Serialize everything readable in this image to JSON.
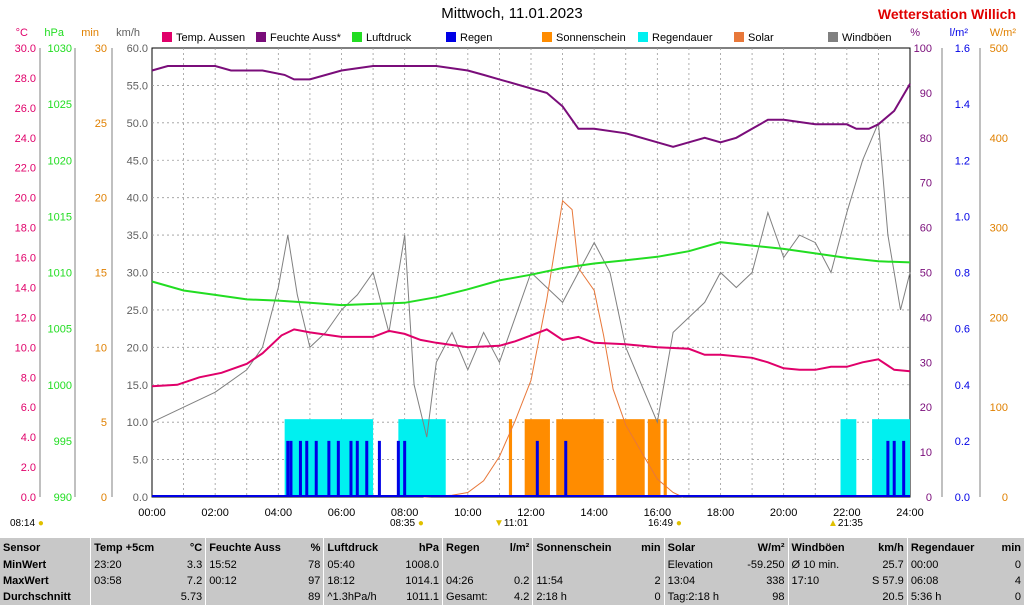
{
  "title": "Mittwoch, 11.01.2023",
  "brand": "Wetterstation Willich",
  "legend": [
    {
      "label": "Temp. Aussen",
      "color": "#e0006a"
    },
    {
      "label": "Feuchte Auss*",
      "color": "#7a0d7a"
    },
    {
      "label": "Luftdruck",
      "color": "#22dd22"
    },
    {
      "label": "Regen",
      "color": "#0000e6"
    },
    {
      "label": "Sonnenschein",
      "color": "#ff8c00"
    },
    {
      "label": "Regendauer",
      "color": "#00f0f0"
    },
    {
      "label": "Solar",
      "color": "#e8783a"
    },
    {
      "label": "Windböen",
      "color": "#808080"
    }
  ],
  "axes": {
    "temp": {
      "unit": "°C",
      "color": "#e0006a",
      "ticks": [
        "0.0",
        "2.0",
        "4.0",
        "6.0",
        "8.0",
        "10.0",
        "12.0",
        "14.0",
        "16.0",
        "18.0",
        "20.0",
        "22.0",
        "24.0",
        "26.0",
        "28.0",
        "30.0"
      ]
    },
    "press": {
      "unit": "hPa",
      "color": "#22dd22",
      "ticks": [
        "990",
        "995",
        "1000",
        "1005",
        "1010",
        "1015",
        "1020",
        "1025",
        "1030"
      ]
    },
    "min": {
      "unit": "min",
      "color": "#e08000",
      "ticks": [
        "0",
        "5",
        "10",
        "15",
        "20",
        "25",
        "30"
      ]
    },
    "wind": {
      "unit": "km/h",
      "color": "#606060",
      "ticks": [
        "0.0",
        "5.0",
        "10.0",
        "15.0",
        "20.0",
        "25.0",
        "30.0",
        "35.0",
        "40.0",
        "45.0",
        "50.0",
        "55.0",
        "60.0"
      ]
    },
    "hum": {
      "unit": "%",
      "color": "#7a0d7a",
      "ticks": [
        "0",
        "10",
        "20",
        "30",
        "40",
        "50",
        "60",
        "70",
        "80",
        "90",
        "100"
      ]
    },
    "rain": {
      "unit": "l/m²",
      "color": "#0000e6",
      "ticks": [
        "0.0",
        "0.2",
        "0.4",
        "0.6",
        "0.8",
        "1.0",
        "1.2",
        "1.4",
        "1.6"
      ]
    },
    "solar": {
      "unit": "W/m²",
      "color": "#e08000",
      "ticks": [
        "0",
        "100",
        "200",
        "300",
        "400",
        "500"
      ]
    },
    "time": {
      "ticks": [
        "00:00",
        "02:00",
        "04:00",
        "06:00",
        "08:00",
        "10:00",
        "12:00",
        "14:00",
        "16:00",
        "18:00",
        "20:00",
        "22:00",
        "24:00"
      ]
    }
  },
  "markers": {
    "left": "08:14",
    "sunrise": "08:35",
    "noon": "11:01",
    "sunset": "16:49",
    "right": "21:35"
  },
  "chart_data": {
    "type": "line",
    "x_unit": "hours",
    "temperature": [
      [
        0,
        7.4
      ],
      [
        0.8,
        7.5
      ],
      [
        1.5,
        8.0
      ],
      [
        2.2,
        8.3
      ],
      [
        3,
        8.9
      ],
      [
        3.5,
        9.6
      ],
      [
        4.1,
        10.8
      ],
      [
        4.5,
        11.2
      ],
      [
        5,
        11.0
      ],
      [
        6,
        10.7
      ],
      [
        7,
        10.7
      ],
      [
        7.5,
        11.1
      ],
      [
        8,
        10.9
      ],
      [
        8.5,
        10.5
      ],
      [
        9,
        10.3
      ],
      [
        10,
        10.0
      ],
      [
        11,
        10.1
      ],
      [
        11.5,
        10.4
      ],
      [
        12,
        10.8
      ],
      [
        12.5,
        11.2
      ],
      [
        13,
        10.5
      ],
      [
        13.5,
        10.7
      ],
      [
        14,
        10.3
      ],
      [
        15,
        10.2
      ],
      [
        16,
        10.0
      ],
      [
        17,
        9.9
      ],
      [
        17.5,
        9.5
      ],
      [
        18,
        9.5
      ],
      [
        19,
        9.3
      ],
      [
        19.5,
        9.0
      ],
      [
        20,
        8.6
      ],
      [
        20.5,
        8.5
      ],
      [
        21,
        8.5
      ],
      [
        21.5,
        8.7
      ],
      [
        22,
        8.7
      ],
      [
        22.5,
        9.0
      ],
      [
        23,
        9.2
      ],
      [
        23.5,
        8.5
      ],
      [
        24,
        8.4
      ]
    ],
    "humidity": [
      [
        0,
        95
      ],
      [
        0.5,
        96
      ],
      [
        2,
        96
      ],
      [
        2.5,
        95
      ],
      [
        3.5,
        95
      ],
      [
        4.2,
        94
      ],
      [
        4.5,
        93
      ],
      [
        5,
        93
      ],
      [
        6,
        95
      ],
      [
        7,
        96
      ],
      [
        8,
        96
      ],
      [
        9,
        96
      ],
      [
        10,
        95
      ],
      [
        10.5,
        94
      ],
      [
        11,
        93
      ],
      [
        12,
        91
      ],
      [
        12.5,
        90
      ],
      [
        13,
        87
      ],
      [
        13.5,
        82
      ],
      [
        14,
        82
      ],
      [
        15,
        81
      ],
      [
        16,
        79
      ],
      [
        16.5,
        78
      ],
      [
        17,
        79
      ],
      [
        17.5,
        80
      ],
      [
        18,
        79
      ],
      [
        18.5,
        80
      ],
      [
        19,
        82
      ],
      [
        19.5,
        84
      ],
      [
        20,
        84
      ],
      [
        21,
        83
      ],
      [
        22,
        83
      ],
      [
        22.3,
        82
      ],
      [
        22.7,
        82
      ],
      [
        23,
        83
      ],
      [
        23.5,
        86
      ],
      [
        24,
        92
      ]
    ],
    "pressure": [
      [
        0,
        1009.2
      ],
      [
        1,
        1008.4
      ],
      [
        2,
        1008.0
      ],
      [
        3,
        1007.6
      ],
      [
        4,
        1007.5
      ],
      [
        5,
        1007.3
      ],
      [
        6,
        1007.1
      ],
      [
        7,
        1007.2
      ],
      [
        8,
        1007.3
      ],
      [
        9,
        1007.8
      ],
      [
        10,
        1008.5
      ],
      [
        11,
        1009.3
      ],
      [
        12,
        1009.8
      ],
      [
        13,
        1010.4
      ],
      [
        14,
        1010.8
      ],
      [
        15,
        1011.1
      ],
      [
        16,
        1011.4
      ],
      [
        17,
        1011.9
      ],
      [
        18,
        1012.7
      ],
      [
        19,
        1012.4
      ],
      [
        20,
        1012.1
      ],
      [
        21,
        1011.7
      ],
      [
        22,
        1011.3
      ],
      [
        23,
        1011.0
      ],
      [
        24,
        1010.9
      ]
    ],
    "solar": [
      [
        8.6,
        0
      ],
      [
        9.5,
        2
      ],
      [
        10,
        5
      ],
      [
        10.5,
        18
      ],
      [
        11,
        45
      ],
      [
        11.5,
        85
      ],
      [
        12,
        130
      ],
      [
        12.5,
        220
      ],
      [
        13,
        330
      ],
      [
        13.3,
        320
      ],
      [
        13.5,
        255
      ],
      [
        14,
        230
      ],
      [
        14.3,
        180
      ],
      [
        14.6,
        120
      ],
      [
        15,
        80
      ],
      [
        15.5,
        50
      ],
      [
        16,
        20
      ],
      [
        16.5,
        5
      ],
      [
        16.8,
        0
      ]
    ],
    "wind_gusts": [
      [
        0,
        10
      ],
      [
        1,
        12
      ],
      [
        2,
        14
      ],
      [
        3,
        17
      ],
      [
        3.5,
        20
      ],
      [
        4,
        28
      ],
      [
        4.3,
        35
      ],
      [
        4.6,
        27
      ],
      [
        5,
        20
      ],
      [
        5.5,
        22
      ],
      [
        6,
        25
      ],
      [
        6.5,
        27
      ],
      [
        7,
        30
      ],
      [
        7.5,
        22
      ],
      [
        8,
        35
      ],
      [
        8.3,
        15
      ],
      [
        8.7,
        8
      ],
      [
        9,
        18
      ],
      [
        9.5,
        22
      ],
      [
        10,
        17
      ],
      [
        10.5,
        22
      ],
      [
        11,
        18
      ],
      [
        11.5,
        24
      ],
      [
        12,
        30
      ],
      [
        12.5,
        28
      ],
      [
        13,
        26
      ],
      [
        13.5,
        30
      ],
      [
        14,
        34
      ],
      [
        14.5,
        30
      ],
      [
        15,
        20
      ],
      [
        15.5,
        15
      ],
      [
        16,
        10
      ],
      [
        16.5,
        22
      ],
      [
        17,
        24
      ],
      [
        17.5,
        26
      ],
      [
        18,
        30
      ],
      [
        18.5,
        28
      ],
      [
        19,
        30
      ],
      [
        19.5,
        38
      ],
      [
        20,
        32
      ],
      [
        20.5,
        35
      ],
      [
        21,
        34
      ],
      [
        21.5,
        30
      ],
      [
        22,
        38
      ],
      [
        22.5,
        45
      ],
      [
        23,
        50
      ],
      [
        23.3,
        35
      ],
      [
        23.7,
        25
      ],
      [
        24,
        30
      ]
    ],
    "rain_events": [
      4.3,
      4.4,
      4.7,
      4.9,
      5.2,
      5.6,
      5.9,
      6.3,
      6.5,
      6.8,
      7.2,
      7.8,
      8.0,
      12.2,
      13.1,
      23.3,
      23.5,
      23.8
    ],
    "rain_duration": [
      [
        4.2,
        7.0
      ],
      [
        7.8,
        9.3
      ],
      [
        21.8,
        22.3
      ],
      [
        22.8,
        24
      ]
    ],
    "sunshine": [
      [
        11.8,
        12.6
      ],
      [
        12.8,
        14.3
      ],
      [
        14.7,
        15.6
      ],
      [
        15.7,
        16.1
      ],
      [
        16.2,
        16.3
      ],
      [
        11.3,
        11.4
      ]
    ]
  },
  "stats": {
    "headers": [
      {
        "label": "Sensor",
        "unit": ""
      },
      {
        "label": "Temp +5cm",
        "unit": "°C"
      },
      {
        "label": "Feuchte Auss",
        "unit": "%"
      },
      {
        "label": "Luftdruck",
        "unit": "hPa"
      },
      {
        "label": "Regen",
        "unit": "l/m²"
      },
      {
        "label": "Sonnenschein",
        "unit": "min"
      },
      {
        "label": "Solar",
        "unit": "W/m²"
      },
      {
        "label": "Windböen",
        "unit": "km/h"
      },
      {
        "label": "Regendauer",
        "unit": "min"
      }
    ],
    "rows": [
      {
        "label": "MinWert",
        "cells": [
          [
            "23:20",
            "3.3"
          ],
          [
            "15:52",
            "78"
          ],
          [
            "05:40",
            "1008.0"
          ],
          [
            "",
            ""
          ],
          [
            "",
            ""
          ],
          [
            "Elevation",
            "-59.250"
          ],
          [
            "Ø 10 min.",
            "25.7"
          ],
          [
            "00:00",
            "0"
          ]
        ]
      },
      {
        "label": "MaxWert",
        "cells": [
          [
            "03:58",
            "7.2"
          ],
          [
            "00:12",
            "97"
          ],
          [
            "18:12",
            "1014.1"
          ],
          [
            "04:26",
            "0.2"
          ],
          [
            "11:54",
            "2"
          ],
          [
            "13:04",
            "338"
          ],
          [
            "17:10",
            "S 57.9"
          ],
          [
            "06:08",
            "4"
          ]
        ]
      },
      {
        "label": "Durchschnitt",
        "cells": [
          [
            "",
            "5.73"
          ],
          [
            "",
            "89"
          ],
          [
            "^1.3hPa/h",
            "1011.1"
          ],
          [
            "Gesamt:",
            "4.2"
          ],
          [
            "2:18 h",
            "0"
          ],
          [
            "Tag:2:18 h",
            "98"
          ],
          [
            "",
            "20.5"
          ],
          [
            "5:36 h",
            "0"
          ]
        ]
      }
    ]
  }
}
